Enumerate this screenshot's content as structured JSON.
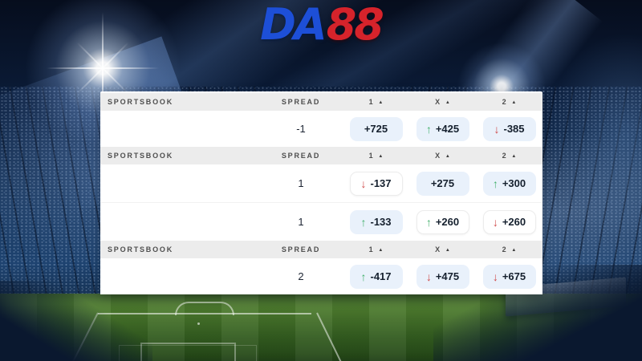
{
  "logo": {
    "part1": "DA",
    "part2": "88"
  },
  "icons": {
    "sort_asc": "▲",
    "up_arrow": "↑",
    "down_arrow": "↓"
  },
  "colors": {
    "logo_blue": "#1d4fd7",
    "logo_red": "#d6232b",
    "header_bg": "#ececec",
    "pill_blue_bg": "#e9f1fb",
    "up_green": "#43b06c",
    "down_red": "#cf4a4a"
  },
  "table": {
    "header": {
      "sportsbook": "SPORTSBOOK",
      "spread": "SPREAD",
      "col1": "1",
      "colx": "X",
      "col2": "2"
    },
    "sections": [
      {
        "rows": [
          {
            "spread": "-1",
            "odds": [
              {
                "value": "+725",
                "trend": "none",
                "style": "blue"
              },
              {
                "value": "+425",
                "trend": "up",
                "style": "blue"
              },
              {
                "value": "-385",
                "trend": "down",
                "style": "blue"
              }
            ]
          }
        ]
      },
      {
        "rows": [
          {
            "spread": "1",
            "odds": [
              {
                "value": "-137",
                "trend": "down",
                "style": "white"
              },
              {
                "value": "+275",
                "trend": "none",
                "style": "blue"
              },
              {
                "value": "+300",
                "trend": "up",
                "style": "blue"
              }
            ]
          },
          {
            "spread": "1",
            "odds": [
              {
                "value": "-133",
                "trend": "up",
                "style": "blue"
              },
              {
                "value": "+260",
                "trend": "up",
                "style": "white"
              },
              {
                "value": "+260",
                "trend": "down",
                "style": "white"
              }
            ]
          }
        ]
      },
      {
        "rows": [
          {
            "spread": "2",
            "odds": [
              {
                "value": "-417",
                "trend": "up",
                "style": "blue"
              },
              {
                "value": "+475",
                "trend": "down",
                "style": "blue"
              },
              {
                "value": "+675",
                "trend": "down",
                "style": "blue"
              }
            ]
          }
        ]
      }
    ]
  }
}
